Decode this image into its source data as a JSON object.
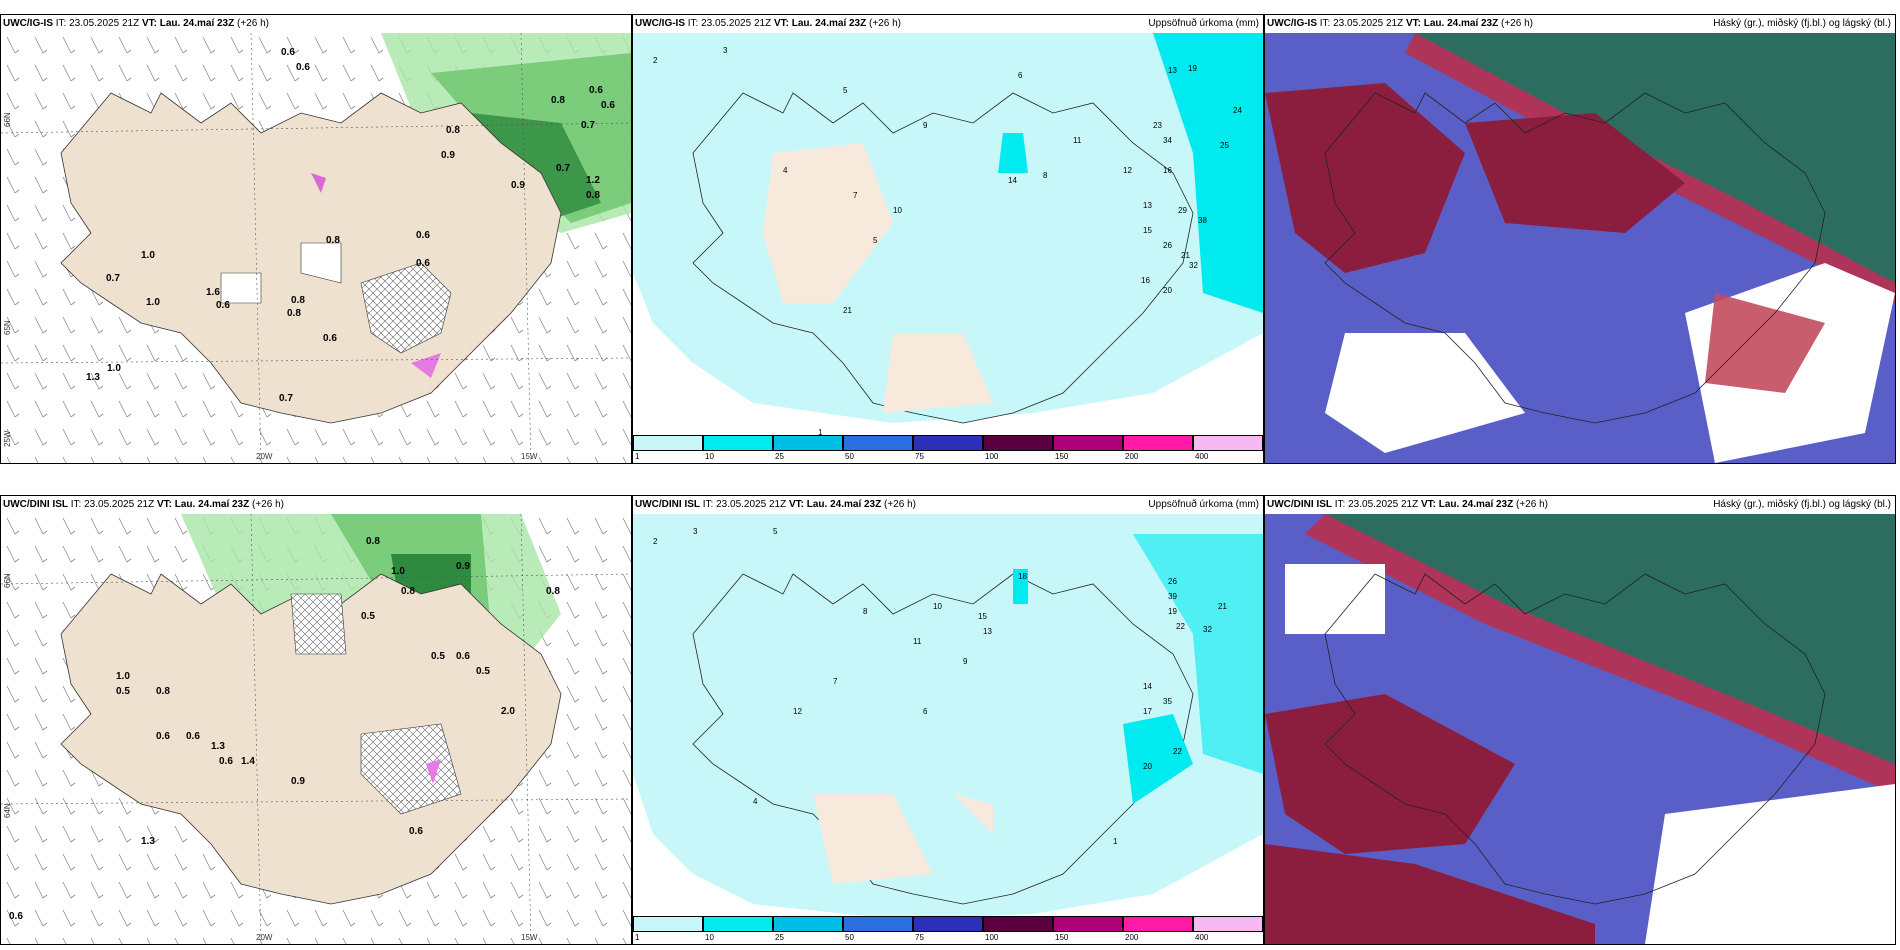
{
  "rows": [
    {
      "model": "UWC/IG-IS",
      "it_label": "IT:",
      "it_value": "23.05.2025 21Z",
      "vt_label": "VT:",
      "vt_value": "Lau. 24.maí 23Z",
      "lead": "(+26 h)"
    },
    {
      "model": "UWC/DINI ISL",
      "it_label": "IT:",
      "it_value": "23.05.2025 21Z",
      "vt_label": "VT:",
      "vt_value": "Lau. 24.maí 23Z",
      "lead": "(+26 h)"
    }
  ],
  "precip_title": "Uppsöfnuð úrkoma (mm)",
  "cloud_title": "Háský (gr.), miðský (fj.bl.) og lágský (bl.)",
  "axes": {
    "lon_20": "20W",
    "lon_15": "15W",
    "lat_66": "66N",
    "lat_64": "64N",
    "lat_65": "65N",
    "lon_25": "25W"
  },
  "legend": {
    "labels": [
      "1",
      "10",
      "25",
      "50",
      "75",
      "100",
      "150",
      "200",
      "400"
    ],
    "colors": [
      "#c8f7fa",
      "#00eaf0",
      "#00bfe6",
      "#2a6fe0",
      "#2c2fb8",
      "#5a0040",
      "#b0007a",
      "#ff1aa8",
      "#f5b8f2"
    ]
  },
  "wind_panel_labels_top": [
    "0.6",
    "0.6",
    "0.8",
    "0.9",
    "0.8",
    "0.7",
    "0.6",
    "0.6",
    "1.0",
    "0.7",
    "1.6",
    "0.8",
    "0.6",
    "0.8",
    "1.0",
    "0.6",
    "0.7",
    "0.6",
    "1.3",
    "1.0",
    "0.6",
    "0.8",
    "1.2",
    "0.9",
    "0.8",
    "0.7"
  ],
  "wind_panel_labels_bottom": [
    "0.8",
    "0.9",
    "0.8",
    "1.0",
    "0.5",
    "0.8",
    "0.5",
    "0.6",
    "0.5",
    "1.0",
    "0.5",
    "0.8",
    "0.6",
    "1.3",
    "0.6",
    "0.9",
    "0.6",
    "2.0",
    "0.6",
    "1.3",
    "0.6",
    "1.4"
  ],
  "precip_labels_top": [
    "2",
    "3",
    "5",
    "6",
    "13",
    "19",
    "24",
    "25",
    "34",
    "23",
    "12",
    "14",
    "9",
    "8",
    "11",
    "16",
    "13",
    "29",
    "38",
    "15",
    "26",
    "21",
    "32",
    "20",
    "16",
    "4",
    "7",
    "10",
    "21",
    "5",
    "1"
  ],
  "precip_labels_bottom": [
    "2",
    "3",
    "5",
    "7",
    "8",
    "10",
    "12",
    "13",
    "15",
    "18",
    "26",
    "19",
    "39",
    "22",
    "32",
    "21",
    "14",
    "35",
    "17",
    "20",
    "22",
    "4",
    "6",
    "1",
    "11",
    "9"
  ]
}
